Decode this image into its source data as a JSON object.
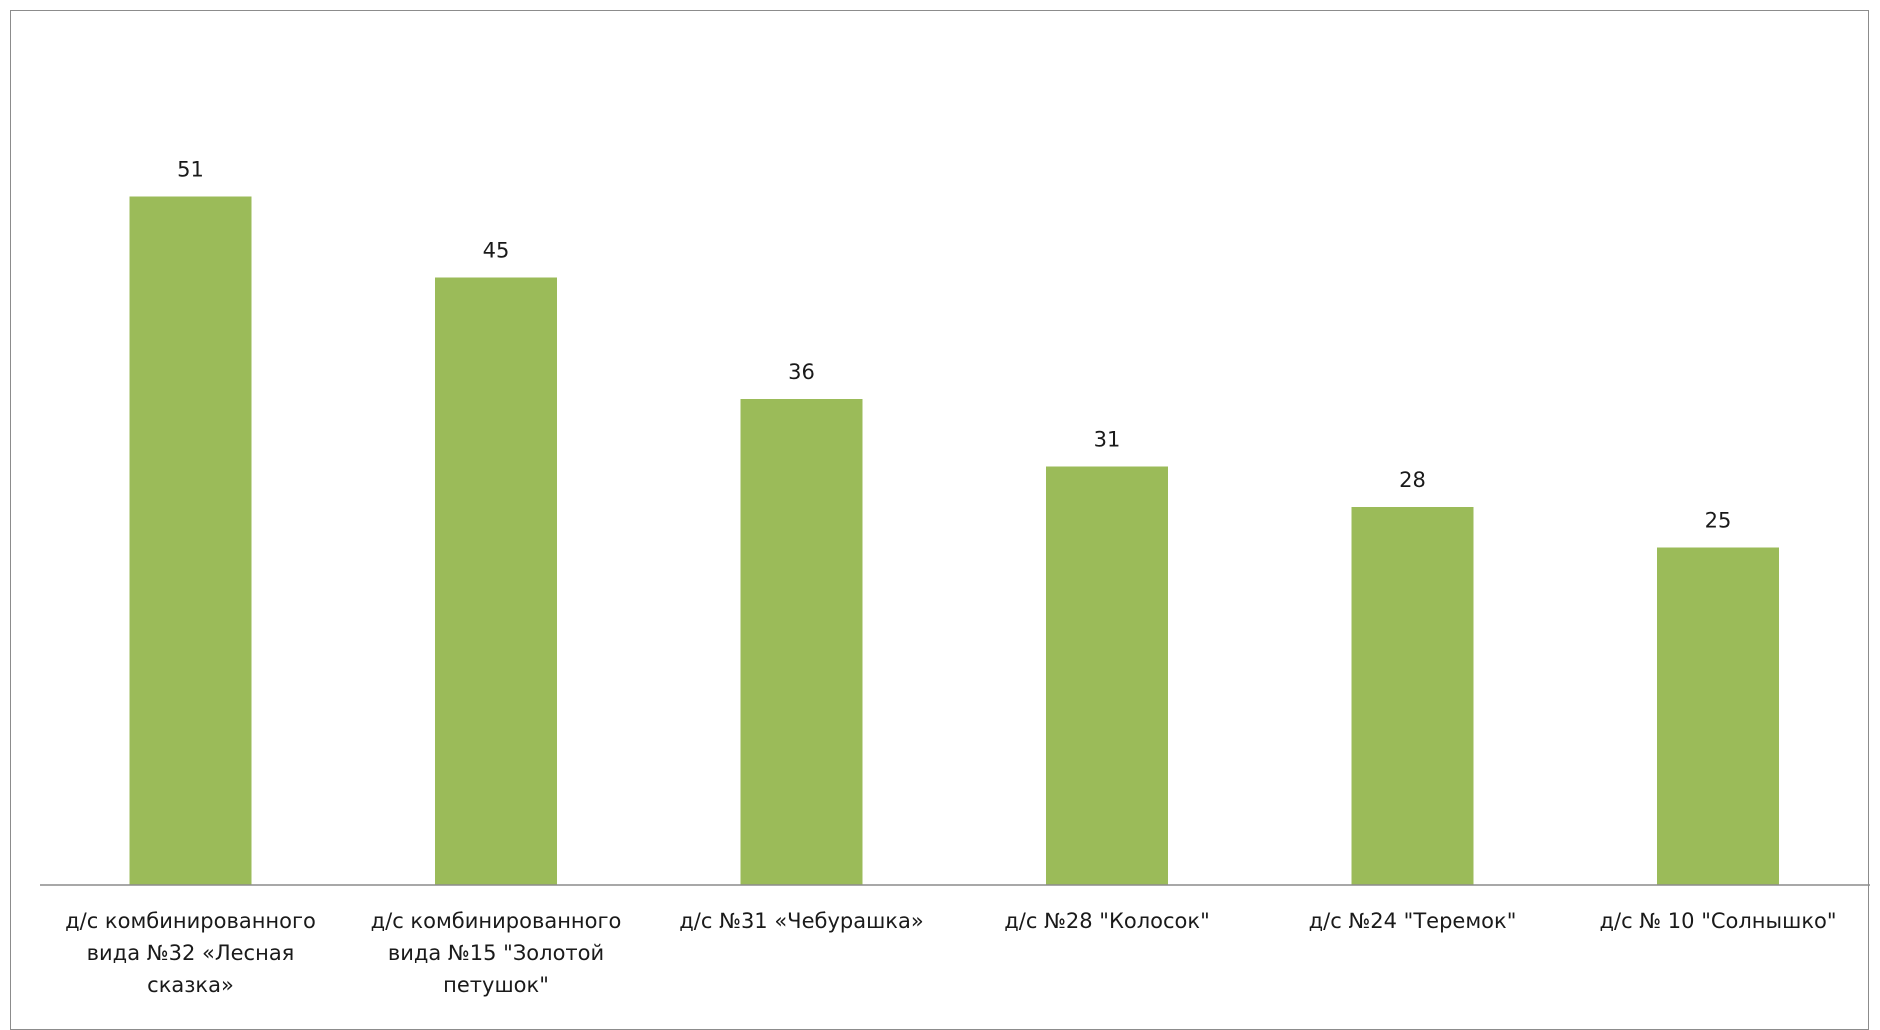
{
  "chart_data": {
    "type": "bar",
    "title": "",
    "xlabel": "",
    "ylabel": "",
    "ylim": [
      0,
      60
    ],
    "grid": false,
    "legend": "none",
    "bar_color": "#9bbb59",
    "categories": [
      "д/с комбинированного вида  №32 «Лесная сказка»",
      "д/с комбинированного вида  №15 \"Золотой петушок\"",
      "д/с №31 «Чебурашка»",
      "д/с №28 \"Колосок\"",
      "д/с  №24 \"Теремок\"",
      "д/с  № 10 \"Солнышко\""
    ],
    "values": [
      51,
      45,
      36,
      31,
      28,
      25
    ],
    "category_lines": [
      [
        "д/с комбинированного",
        "вида  №32 «Лесная",
        "сказка»"
      ],
      [
        "д/с комбинированного",
        "вида  №15 \"Золотой",
        "петушок\""
      ],
      [
        "д/с №31 «Чебурашка»"
      ],
      [
        "д/с №28 \"Колосок\""
      ],
      [
        "д/с  №24 \"Теремок\""
      ],
      [
        "д/с  № 10 \"Солнышко\""
      ]
    ]
  }
}
